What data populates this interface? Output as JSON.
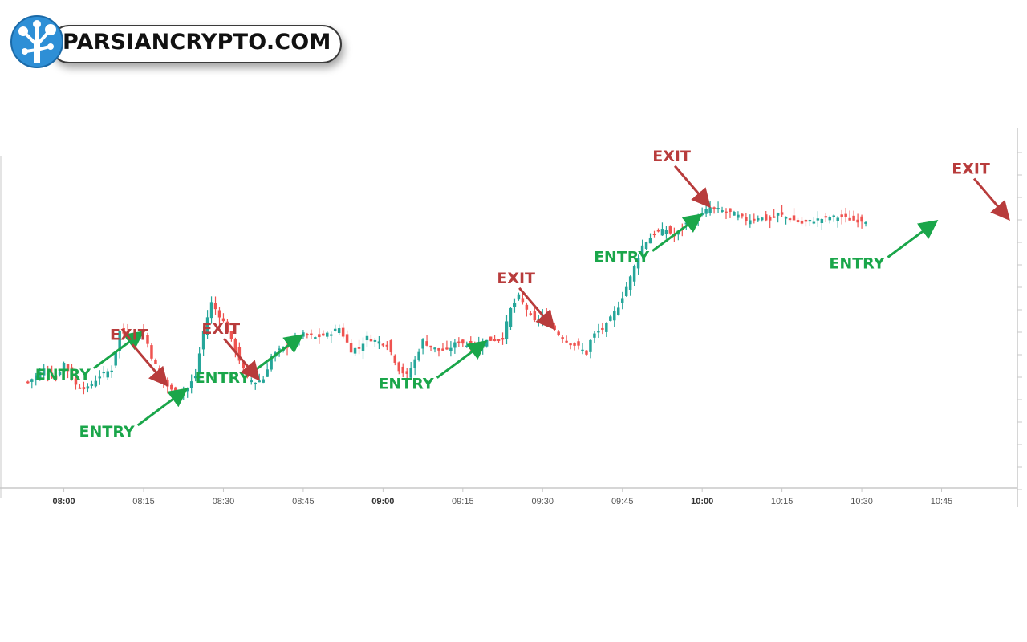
{
  "brand": {
    "name": "PARSIANCRYPTO.COM",
    "logo_icon": "tree-network-icon",
    "colors": {
      "badge": "#2e8fd6",
      "text": "#111111"
    }
  },
  "chart_data": {
    "type": "candlestick",
    "title": "",
    "xlabel": "",
    "ylabel": "",
    "grid": false,
    "legend": "none",
    "colors": {
      "up": "#26a69a",
      "down": "#ef5350",
      "entry": "#1aa64a",
      "exit": "#b83c3c",
      "axis": "#c8c8c8"
    },
    "x_range": [
      -7,
      248
    ],
    "y_range": [
      0,
      100
    ],
    "x_ticks": [
      {
        "label": "08:00",
        "x": 9,
        "bold": true
      },
      {
        "label": "08:15",
        "x": 29,
        "bold": false
      },
      {
        "label": "08:30",
        "x": 49,
        "bold": false
      },
      {
        "label": "08:45",
        "x": 69,
        "bold": false
      },
      {
        "label": "09:00",
        "x": 89,
        "bold": true
      },
      {
        "label": "09:15",
        "x": 109,
        "bold": false
      },
      {
        "label": "09:30",
        "x": 129,
        "bold": false
      },
      {
        "label": "09:45",
        "x": 149,
        "bold": false
      },
      {
        "label": "10:00",
        "x": 169,
        "bold": true
      },
      {
        "label": "10:15",
        "x": 189,
        "bold": false
      },
      {
        "label": "10:30",
        "x": 209,
        "bold": false
      },
      {
        "label": "10:45",
        "x": 229,
        "bold": false
      }
    ],
    "anchor_points": [
      [
        0,
        20
      ],
      [
        4,
        24
      ],
      [
        7,
        21
      ],
      [
        9,
        26
      ],
      [
        12,
        19
      ],
      [
        15,
        18
      ],
      [
        18,
        22
      ],
      [
        21,
        24
      ],
      [
        23,
        36
      ],
      [
        26,
        34
      ],
      [
        29,
        36
      ],
      [
        31,
        28
      ],
      [
        34,
        20
      ],
      [
        37,
        16
      ],
      [
        40,
        18
      ],
      [
        42,
        22
      ],
      [
        44,
        36
      ],
      [
        46,
        45
      ],
      [
        49,
        39
      ],
      [
        51,
        33
      ],
      [
        53,
        27
      ],
      [
        55,
        21
      ],
      [
        57,
        20
      ],
      [
        59,
        21
      ],
      [
        61,
        28
      ],
      [
        63,
        30
      ],
      [
        66,
        32
      ],
      [
        69,
        35
      ],
      [
        72,
        34
      ],
      [
        75,
        35
      ],
      [
        78,
        37
      ],
      [
        81,
        30
      ],
      [
        83,
        31
      ],
      [
        85,
        34
      ],
      [
        87,
        33
      ],
      [
        90,
        32
      ],
      [
        93,
        24
      ],
      [
        95,
        22
      ],
      [
        97,
        27
      ],
      [
        99,
        33
      ],
      [
        101,
        31
      ],
      [
        103,
        30
      ],
      [
        105,
        30
      ],
      [
        108,
        33
      ],
      [
        111,
        31
      ],
      [
        115,
        33
      ],
      [
        119,
        34
      ],
      [
        121,
        43
      ],
      [
        123,
        47
      ],
      [
        125,
        43
      ],
      [
        127,
        39
      ],
      [
        129,
        41
      ],
      [
        131,
        38
      ],
      [
        133,
        35
      ],
      [
        135,
        33
      ],
      [
        138,
        31
      ],
      [
        140,
        29
      ],
      [
        141,
        33
      ],
      [
        142,
        35
      ],
      [
        145,
        38
      ],
      [
        148,
        44
      ],
      [
        151,
        53
      ],
      [
        154,
        63
      ],
      [
        157,
        67
      ],
      [
        160,
        68
      ],
      [
        162,
        66
      ],
      [
        165,
        70
      ],
      [
        168,
        72
      ],
      [
        171,
        75
      ],
      [
        174,
        74
      ],
      [
        177,
        73
      ],
      [
        180,
        71
      ],
      [
        183,
        72
      ],
      [
        186,
        71
      ],
      [
        188,
        73
      ],
      [
        190,
        72
      ],
      [
        192,
        71
      ],
      [
        194,
        70
      ],
      [
        197,
        71
      ],
      [
        201,
        72
      ],
      [
        204,
        72
      ],
      [
        207,
        71
      ],
      [
        210,
        71
      ]
    ],
    "entries": [
      {
        "label": "ENTRY",
        "x": 29
      },
      {
        "label": "ENTRY",
        "x": 40
      },
      {
        "label": "ENTRY",
        "x": 69
      },
      {
        "label": "ENTRY",
        "x": 115
      },
      {
        "label": "ENTRY",
        "x": 169
      },
      {
        "label": "ENTRY",
        "x": 228
      }
    ],
    "exits": [
      {
        "label": "EXIT",
        "x": 35
      },
      {
        "label": "EXIT",
        "x": 58
      },
      {
        "label": "EXIT",
        "x": 132
      },
      {
        "label": "EXIT",
        "x": 171
      },
      {
        "label": "EXIT",
        "x": 246
      }
    ]
  }
}
